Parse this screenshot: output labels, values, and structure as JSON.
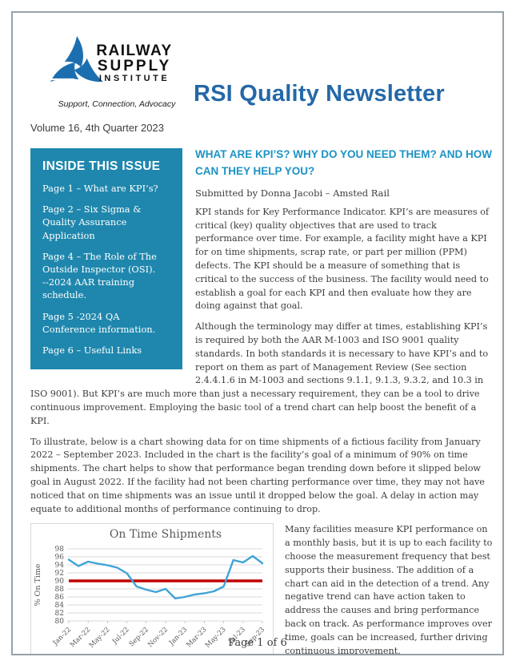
{
  "masthead": {
    "logo": {
      "line1": "RAILWAY",
      "line2": "SUPPLY",
      "line3": "INSTITUTE",
      "tagline": "Support, Connection, Advocacy",
      "brand_color": "#1b6fb0"
    },
    "newsletter_title": "RSI Quality Newsletter",
    "title_color": "#2468a8",
    "volume_line": "Volume 16, 4th Quarter 2023"
  },
  "sidebar": {
    "heading": "INSIDE THIS ISSUE",
    "bg_color": "#1f87ad",
    "items": [
      "Page 1 – What are KPI’s?",
      "Page 2 – Six Sigma & Quality Assurance Application",
      "Page 4 – The Role of The Outside Inspector (OSI).\n--2024 AAR training schedule.",
      "Page 5 -2024 QA Conference information.",
      "Page 6 – Useful Links"
    ]
  },
  "article": {
    "heading": "WHAT ARE KPI’S? WHY DO YOU NEED THEM?  AND HOW CAN THEY HELP YOU?",
    "heading_color": "#1c93c4",
    "byline": "Submitted by Donna Jacobi – Amsted Rail",
    "paragraphs": {
      "p1": "KPI stands for Key Performance Indicator.  KPI’s are measures of critical (key) quality objectives that are used to track performance over time.  For example, a facility might have a KPI for on time shipments, scrap rate, or part per million (PPM) defects.  The KPI should be a measure of something that is critical to the success of the business.  The facility would need to establish a goal for each KPI and then evaluate how they are doing against that goal.",
      "p2": "Although the terminology may differ at times, establishing KPI’s is required by both the AAR M-1003 and ISO 9001 quality standards.  In both standards it is necessary to have KPI’s and to report on them as part of Management Review (See section 2.4.4.1.6 in M-1003 and sections 9.1.1, 9.1.3, 9.3.2, and 10.3 in ISO 9001). But KPI’s are much more than just a necessary requirement, they can be a tool to drive continuous improvement.  Employing the basic tool of a trend chart can help boost the benefit of a KPI.",
      "p3": "To illustrate, below is a chart showing data for on time shipments of a fictious facility from January 2022 – September 2023.  Included in the chart is the facility’s goal of a minimum of 90% on time shipments.  The chart helps to show that performance began trending down before it slipped below goal in August 2022.  If the facility had not been charting performance over time, they may not have noticed that on time shipments was an issue until it dropped below the goal.  A delay in action may equate to additional months of performance continuing to drop.",
      "p4": "Many facilities measure KPI performance on a monthly basis, but it is up to each facility to choose the measurement frequency that best supports their business.  The addition of a chart can aid in the detection of a trend.  Any negative trend can have action taken to address the causes and bring performance back on track.  As performance improves over time, goals can be increased, further driving continuous improvement."
    }
  },
  "chart_data": {
    "type": "line",
    "title": "On Time Shipments",
    "ylabel": "% On Time",
    "ylim": [
      80,
      98
    ],
    "ytick_step": 2,
    "grid": true,
    "legend": "none",
    "x_label_every": 2,
    "x": [
      "Jan-22",
      "Feb-22",
      "Mar-22",
      "Apr-22",
      "May-22",
      "Jun-22",
      "Jul-22",
      "Aug-22",
      "Sep-22",
      "Oct-22",
      "Nov-22",
      "Dec-22",
      "Jan-23",
      "Feb-23",
      "Mar-23",
      "Apr-23",
      "May-23",
      "Jun-23",
      "Jul-23",
      "Aug-23",
      "Sep-23"
    ],
    "series": [
      {
        "name": "On Time %",
        "color": "#3fa3d7",
        "values": [
          95.3,
          93.7,
          94.8,
          94.3,
          93.9,
          93.3,
          91.9,
          88.6,
          87.8,
          87.2,
          88.0,
          85.6,
          86.0,
          86.6,
          86.9,
          87.4,
          88.6,
          95.2,
          94.6,
          96.2,
          94.4
        ]
      }
    ],
    "goal": {
      "name": "Goal",
      "value": 90,
      "color": "#c00000"
    }
  },
  "footer": {
    "text": "Page 1 of 6"
  }
}
